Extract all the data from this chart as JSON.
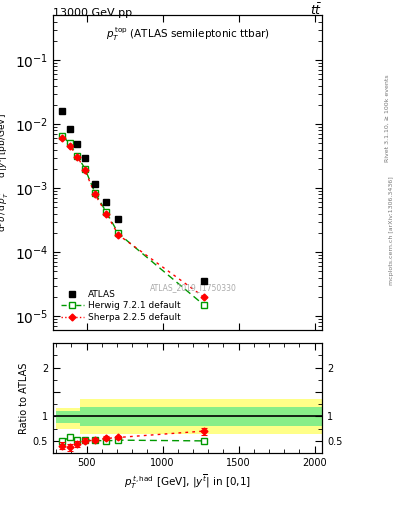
{
  "title_left": "13000 GeV pp",
  "title_right": "t$\\bar{t}$",
  "annotation": "$p_T^{\\mathrm{top}}$ (ATLAS semileptonic ttbar)",
  "watermark": "ATLAS_2019_I1750330",
  "right_label1": "Rivet 3.1.10, ≥ 100k events",
  "right_label2": "mcplots.cern.ch [arXiv:1306.3436]",
  "ylabel_main": "d$^2\\sigma$ / d $p_T^{t,had}$ d $|y^{\\bar{t}}|$ [pb/GeV]",
  "xlabel": "$p_T^{t,\\mathrm{had}}$ [GeV], $|y^{\\overline{\\mathrm{bar}}t}|$ in [0,1]",
  "ylabel_ratio": "Ratio to ATLAS",
  "atlas_x": [
    340,
    390,
    440,
    490,
    555,
    630,
    710,
    1270
  ],
  "atlas_y": [
    0.016,
    0.0085,
    0.0048,
    0.0029,
    0.00115,
    0.0006,
    0.00033,
    3.5e-05
  ],
  "herwig_x": [
    340,
    390,
    440,
    490,
    555,
    630,
    710,
    1270
  ],
  "herwig_y": [
    0.0065,
    0.005,
    0.0032,
    0.002,
    0.00085,
    0.00042,
    0.000195,
    1.5e-05
  ],
  "sherpa_x": [
    340,
    390,
    440,
    490,
    555,
    630,
    710,
    1270
  ],
  "sherpa_y": [
    0.006,
    0.0046,
    0.0031,
    0.0019,
    0.0008,
    0.0004,
    0.000185,
    2e-05
  ],
  "herwig_ratio_x": [
    340,
    390,
    440,
    490,
    555,
    630,
    710,
    1270
  ],
  "herwig_ratio_y": [
    0.5,
    0.57,
    0.52,
    0.52,
    0.51,
    0.5,
    0.515,
    0.5
  ],
  "sherpa_ratio_x": [
    340,
    390,
    440,
    490,
    555,
    630,
    710,
    1270
  ],
  "sherpa_ratio_y": [
    0.4,
    0.37,
    0.44,
    0.5,
    0.51,
    0.55,
    0.57,
    0.7
  ],
  "sherpa_ratio_yerr": [
    0.07,
    0.07,
    0.06,
    0.05,
    0.04,
    0.04,
    0.04,
    0.07
  ],
  "band_x": [
    300,
    460,
    460,
    610,
    610,
    2050
  ],
  "band_yellow_bottom": [
    0.75,
    0.75,
    0.65,
    0.65,
    0.65,
    0.65
  ],
  "band_yellow_top": [
    1.18,
    1.18,
    1.35,
    1.35,
    1.35,
    1.35
  ],
  "band_green_bottom": [
    0.87,
    0.87,
    0.8,
    0.8,
    0.8,
    0.8
  ],
  "band_green_top": [
    1.12,
    1.12,
    1.2,
    1.2,
    1.2,
    1.2
  ],
  "ylim_main": [
    6e-06,
    0.5
  ],
  "ylim_ratio": [
    0.25,
    2.5
  ],
  "xlim": [
    280,
    2050
  ],
  "atlas_color": "black",
  "herwig_color": "#009900",
  "sherpa_color": "red",
  "band_yellow_color": "#ffff88",
  "band_green_color": "#88ee88",
  "legend_entries": [
    "ATLAS",
    "Herwig 7.2.1 default",
    "Sherpa 2.2.5 default"
  ]
}
